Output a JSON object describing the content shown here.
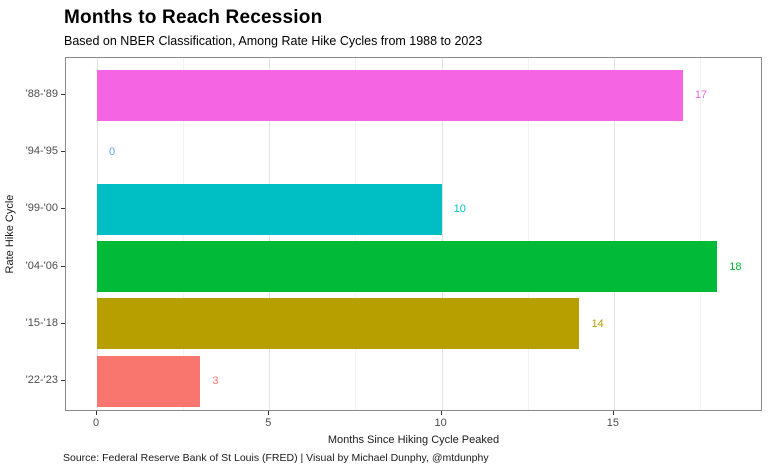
{
  "header": {
    "title": "Months to Reach Recession",
    "subtitle": "Based on NBER Classification, Among Rate Hike Cycles from 1988 to 2023"
  },
  "caption": "Source: Federal Reserve Bank of St Louis (FRED) | Visual by Michael Dunphy, @mtdunphy",
  "chart_data": {
    "type": "bar",
    "orientation": "horizontal",
    "title": "Months to Reach Recession",
    "subtitle": "Based on NBER Classification, Among Rate Hike Cycles from 1988 to 2023",
    "xlabel": "Months Since Hiking Cycle Peaked",
    "ylabel": "Rate Hike Cycle",
    "categories": [
      "'88-'89",
      "'94-'95",
      "'99-'00",
      "'04-'06",
      "'15-'18",
      "'22-'23"
    ],
    "values": [
      17,
      0,
      10,
      18,
      14,
      3
    ],
    "bar_colors": [
      "#F564E3",
      "#619CFF",
      "#00BFC4",
      "#00BA38",
      "#B79F00",
      "#F8766D"
    ],
    "value_labels": [
      "17",
      "0",
      "10",
      "18",
      "14",
      "3"
    ],
    "x_major_ticks": [
      0,
      5,
      10,
      15
    ],
    "x_minor_ticks": [
      2.5,
      7.5,
      12.5,
      17.5
    ],
    "xlim": [
      -0.9,
      19.3
    ],
    "grid": "vertical-major-and-minor",
    "horizontal_grid": false,
    "legend": "none",
    "panel_border_color": "#8a8a8a",
    "major_grid_color": "#e3e3e3",
    "minor_grid_color": "#f3f3f3"
  }
}
